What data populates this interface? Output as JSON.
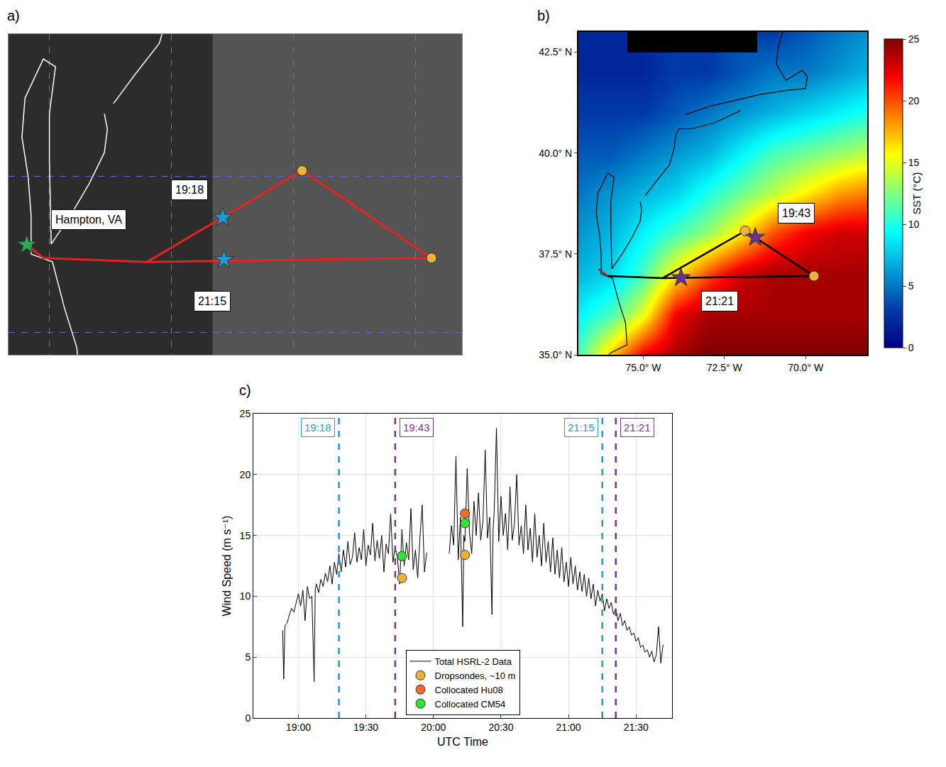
{
  "chart_data": [
    {
      "type": "scatter",
      "title": "a)",
      "tick_labels": false,
      "grid": true,
      "xlim": [
        -76.67,
        -69.24
      ],
      "ylim": [
        35.71,
        39.82
      ],
      "xticks": [
        -76,
        -74,
        -72,
        -70
      ],
      "yticks": [
        36,
        38
      ],
      "coastline": {
        "x": [
          -76.5,
          -76.0,
          -75.5,
          -75.55,
          -75.75,
          -75.95,
          -76.3,
          null,
          -76.3,
          -76.3,
          -76.35,
          -76.45,
          -76.4,
          -76.1,
          -75.9,
          -76.0,
          -76.0,
          -75.97,
          -75.65,
          -75.35,
          -75.1,
          -75.05,
          -75.1,
          null,
          -74.95,
          -74.6,
          -74.2,
          -74.05,
          -74.0,
          -73.9,
          -73.5,
          -72.8,
          -72.0,
          null,
          -73.7,
          -73.0,
          -72.3,
          -71.4,
          -71.0,
          -70.6,
          -70.0,
          -69.95,
          -70.1,
          -70.6,
          -70.9,
          -70.85,
          -70.7
        ],
        "y": [
          34.6,
          35.05,
          35.25,
          35.8,
          36.3,
          36.9,
          37.0,
          null,
          37.0,
          37.5,
          38.0,
          38.5,
          39.0,
          39.5,
          39.4,
          38.8,
          38.2,
          37.13,
          37.5,
          37.9,
          38.3,
          38.6,
          38.8,
          null,
          38.93,
          39.3,
          39.7,
          40.1,
          40.45,
          40.6,
          40.6,
          40.75,
          41.05,
          null,
          40.95,
          41.15,
          41.28,
          41.45,
          41.5,
          41.55,
          41.6,
          41.9,
          42.05,
          41.8,
          42.2,
          42.6,
          43.0
        ]
      },
      "series": [
        {
          "type": "line",
          "color": "#e8231f",
          "x": [
            -76.37,
            -76.1,
            -74.4,
            -71.86,
            -69.74,
            -74.4,
            -76.1,
            -76.37
          ],
          "y": [
            37.12,
            36.95,
            36.9,
            38.07,
            36.95,
            36.9,
            36.95,
            37.12
          ]
        },
        {
          "type": "scatter",
          "marker": "circle",
          "color": "#f5b335",
          "x": [
            -71.86,
            -69.74
          ],
          "y": [
            38.07,
            36.95
          ]
        },
        {
          "type": "scatter",
          "marker": "star",
          "color": "#1e9bd7",
          "x": [
            -73.16,
            -73.14
          ],
          "y": [
            37.47,
            36.93
          ]
        },
        {
          "type": "scatter",
          "marker": "star",
          "color": "#22b14c",
          "x": [
            -76.37
          ],
          "y": [
            37.12
          ]
        }
      ],
      "annotations": [
        {
          "text": "Hampton, VA",
          "x": -75.36,
          "y": 37.44
        },
        {
          "text": "19:18",
          "x": -73.7,
          "y": 37.82
        },
        {
          "text": "21:15",
          "x": -73.33,
          "y": 36.4
        }
      ]
    },
    {
      "type": "heatmap",
      "title": "b)",
      "xlim": [
        -77,
        -68.1
      ],
      "ylim": [
        35,
        43
      ],
      "xticks": [
        {
          "value": -75,
          "label": "75.0° W"
        },
        {
          "value": -72.5,
          "label": "72.5° W"
        },
        {
          "value": -70,
          "label": "70.0° W"
        }
      ],
      "yticks": [
        {
          "value": 35,
          "label": "35.0° N"
        },
        {
          "value": 37.5,
          "label": "37.5° N"
        },
        {
          "value": 40,
          "label": "40.0° N"
        },
        {
          "value": 42.5,
          "label": "42.5° N"
        }
      ],
      "x": [
        -77,
        -76,
        -75,
        -74,
        -73,
        -72,
        -71,
        -70,
        -69,
        -68
      ],
      "y": [
        35,
        36,
        37,
        38,
        39,
        40,
        41,
        42,
        43
      ],
      "z": [
        [
          11,
          17,
          22,
          24,
          25,
          25,
          25,
          25,
          25,
          25
        ],
        [
          9,
          11,
          15,
          22,
          24,
          24,
          24,
          24,
          24,
          24
        ],
        [
          7,
          8,
          11,
          16,
          20,
          23,
          24,
          24,
          24,
          24
        ],
        [
          6,
          7,
          9,
          11,
          13,
          16,
          20,
          22,
          23,
          23
        ],
        [
          5,
          6,
          7,
          8,
          10,
          12,
          14,
          16,
          18,
          19
        ],
        [
          4,
          4,
          5,
          6,
          7,
          9,
          11,
          12,
          13,
          14
        ],
        [
          3,
          3,
          3,
          4,
          5,
          6,
          7,
          8,
          9,
          10
        ],
        [
          2,
          2,
          2,
          3,
          3,
          4,
          5,
          5,
          6,
          7
        ],
        [
          2,
          2,
          null,
          null,
          null,
          null,
          3,
          4,
          5,
          6
        ]
      ],
      "colorbar": {
        "title": "SST (°C)",
        "range": [
          0,
          25
        ],
        "ticks": [
          0,
          5,
          10,
          15,
          20,
          25
        ]
      },
      "coastline": {
        "x": [
          -76.5,
          -76.0,
          -75.5,
          -75.55,
          -75.75,
          -75.95,
          -76.3,
          null,
          -76.3,
          -76.3,
          -76.35,
          -76.45,
          -76.4,
          -76.1,
          -75.9,
          -76.0,
          -76.0,
          -75.97,
          -75.65,
          -75.35,
          -75.1,
          -75.05,
          -75.1,
          null,
          -74.95,
          -74.6,
          -74.2,
          -74.05,
          -74.0,
          -73.9,
          -73.5,
          -72.8,
          -72.0,
          null,
          -73.7,
          -73.0,
          -72.3,
          -71.4,
          -71.0,
          -70.6,
          -70.0,
          -69.95,
          -70.1,
          -70.6,
          -70.9,
          -70.85,
          -70.7
        ],
        "y": [
          34.6,
          35.05,
          35.25,
          35.8,
          36.3,
          36.9,
          37.0,
          null,
          37.0,
          37.5,
          38.0,
          38.5,
          39.0,
          39.5,
          39.4,
          38.8,
          38.2,
          37.13,
          37.5,
          37.9,
          38.3,
          38.6,
          38.8,
          null,
          38.93,
          39.3,
          39.7,
          40.1,
          40.45,
          40.6,
          40.6,
          40.75,
          41.05,
          null,
          40.95,
          41.15,
          41.28,
          41.45,
          41.5,
          41.55,
          41.6,
          41.9,
          42.05,
          41.8,
          42.2,
          42.6,
          43.0
        ]
      },
      "series": [
        {
          "type": "line",
          "color": "#000000",
          "x": [
            -76.1,
            -74.4,
            -71.86,
            -69.74,
            -74.4,
            -76.1
          ],
          "y": [
            36.95,
            36.9,
            38.07,
            36.95,
            36.9,
            36.95
          ]
        },
        {
          "type": "line",
          "color": "#c0151b",
          "x": [
            -76.37,
            -76.1
          ],
          "y": [
            37.12,
            36.95
          ]
        },
        {
          "type": "scatter",
          "marker": "circle",
          "color": "#f5b335",
          "x": [
            -71.86,
            -69.74
          ],
          "y": [
            38.07,
            36.95
          ]
        },
        {
          "type": "scatter",
          "marker": "star",
          "color": "#6b2f8f",
          "x": [
            -71.55,
            -73.84
          ],
          "y": [
            37.91,
            36.91
          ]
        }
      ],
      "annotations": [
        {
          "text": "19:43",
          "x": -70.28,
          "y": 38.51
        },
        {
          "text": "21:21",
          "x": -72.64,
          "y": 36.32
        }
      ]
    },
    {
      "type": "line",
      "title": "c)",
      "xlabel": "UTC Time",
      "ylabel": "Wind Speed (m s⁻¹)",
      "xlim": [
        1120,
        1306
      ],
      "ylim": [
        0,
        25
      ],
      "xticks": [
        {
          "value": 1140,
          "label": "19:00"
        },
        {
          "value": 1170,
          "label": "19:30"
        },
        {
          "value": 1200,
          "label": "20:00"
        },
        {
          "value": 1230,
          "label": "20:30"
        },
        {
          "value": 1260,
          "label": "21:00"
        },
        {
          "value": 1290,
          "label": "21:30"
        }
      ],
      "yticks": [
        0,
        5,
        10,
        15,
        20,
        25
      ],
      "grid": true,
      "legend": "lower center",
      "series": [
        {
          "name": "Total HSRL-2 Data",
          "type": "line",
          "color": "#000000",
          "x": [
            1133,
            1133.5,
            1134,
            1135,
            1136,
            1137,
            1138,
            1139,
            1140,
            1141,
            1142,
            1143,
            1144,
            1145,
            1146,
            1147,
            1147.5,
            1148,
            1149,
            1150,
            1151,
            1152,
            1153,
            1154,
            1155,
            1156,
            1157,
            1158,
            1159,
            1160,
            1161,
            1162,
            1163,
            1164,
            1165,
            1166,
            1167,
            1168,
            1169,
            1170,
            1171,
            1172,
            1173,
            1174,
            1175,
            1176,
            1177,
            1178,
            1179,
            1180,
            1181,
            1182,
            1183,
            1184,
            1185,
            1186,
            1187,
            1188,
            1189,
            1190,
            1191,
            1192,
            1193,
            1194,
            1195,
            1196,
            1197,
            1200,
            1207,
            1208,
            1209,
            1210,
            1211,
            1212,
            1213,
            1213.5,
            1214,
            1215,
            1216,
            1217,
            1218,
            1219,
            1220,
            1221,
            1222,
            1223,
            1224,
            1225,
            1226,
            1226.5,
            1227,
            1228,
            1229,
            1230,
            1231,
            1232,
            1233,
            1234,
            1235,
            1236,
            1237,
            1238,
            1239,
            1240,
            1241,
            1242,
            1243,
            1244,
            1245,
            1246,
            1247,
            1248,
            1249,
            1250,
            1251,
            1252,
            1253,
            1254,
            1255,
            1256,
            1257,
            1258,
            1259,
            1260,
            1261,
            1262,
            1263,
            1264,
            1265,
            1266,
            1267,
            1268,
            1269,
            1270,
            1271,
            1272,
            1273,
            1274,
            1275,
            1276,
            1277,
            1278,
            1279,
            1280,
            1281,
            1282,
            1283,
            1284,
            1285,
            1286,
            1287,
            1288,
            1289,
            1290,
            1291,
            1292,
            1293,
            1294,
            1295,
            1296,
            1297,
            1298,
            1299,
            1300,
            1301,
            1302
          ],
          "values": [
            7.2,
            3.2,
            7.6,
            7.8,
            8.5,
            9.0,
            8.7,
            9.5,
            10.2,
            9.2,
            10.5,
            8.0,
            10.8,
            9.8,
            10.0,
            3.0,
            10.5,
            11.0,
            10.3,
            11.4,
            10.8,
            11.9,
            11.2,
            12.5,
            11.0,
            12.8,
            11.8,
            13.5,
            12.0,
            13.8,
            12.4,
            14.5,
            12.6,
            13.2,
            15.2,
            12.8,
            14.0,
            13.0,
            15.5,
            12.5,
            14.2,
            13.4,
            16.0,
            12.9,
            14.6,
            13.1,
            15.0,
            12.0,
            14.3,
            13.5,
            16.8,
            12.8,
            14.0,
            13.2,
            11.0,
            15.5,
            12.5,
            14.4,
            13.0,
            17.2,
            12.2,
            13.8,
            11.5,
            14.8,
            17.5,
            12.0,
            13.6,
            null,
            13.5,
            15.8,
            14.2,
            21.5,
            13.0,
            16.5,
            7.5,
            15.0,
            14.5,
            20.5,
            15.2,
            13.5,
            17.8,
            15.0,
            18.5,
            14.6,
            16.2,
            22.0,
            14.8,
            16.5,
            8.5,
            15.5,
            17.0,
            23.8,
            14.5,
            18.2,
            15.0,
            16.8,
            13.8,
            19.0,
            14.6,
            16.0,
            20.0,
            14.2,
            15.8,
            13.5,
            17.5,
            13.8,
            15.6,
            12.8,
            16.8,
            13.2,
            15.0,
            12.5,
            16.0,
            12.8,
            14.5,
            12.0,
            14.8,
            11.8,
            13.8,
            11.5,
            14.0,
            11.2,
            12.8,
            10.8,
            13.2,
            11.0,
            12.5,
            10.5,
            12.0,
            10.4,
            11.8,
            10.0,
            11.5,
            9.8,
            11.0,
            9.2,
            10.5,
            9.6,
            10.2,
            8.8,
            9.8,
            9.0,
            9.5,
            8.5,
            9.0,
            8.0,
            8.6,
            7.6,
            8.0,
            7.2,
            7.5,
            6.8,
            7.0,
            6.3,
            6.6,
            5.8,
            6.0,
            5.4,
            5.6,
            5.0,
            5.5,
            4.6,
            5.2,
            7.5,
            4.5,
            6.0
          ]
        },
        {
          "name": "Dropsondes, ~10 m",
          "type": "scatter",
          "marker": "circle",
          "color": "#f2b134",
          "x": [
            1186,
            1214
          ],
          "values": [
            11.5,
            13.4
          ]
        },
        {
          "name": "Collocated Hu08",
          "type": "scatter",
          "marker": "circle",
          "color": "#f26b2a",
          "x": [
            1214
          ],
          "values": [
            16.8
          ]
        },
        {
          "name": "Collocated CM54",
          "type": "scatter",
          "marker": "circle",
          "color": "#2ee62e",
          "x": [
            1186,
            1214
          ],
          "values": [
            13.3,
            16.0
          ]
        }
      ],
      "annotations": [
        {
          "text": "19:18",
          "x": 1158,
          "color": "#1e9bd7"
        },
        {
          "text": "19:43",
          "x": 1183,
          "color": "#7b3294"
        },
        {
          "text": "21:15",
          "x": 1275,
          "color": "#1e9bd7"
        },
        {
          "text": "21:21",
          "x": 1281,
          "color": "#7b3294"
        }
      ]
    }
  ]
}
